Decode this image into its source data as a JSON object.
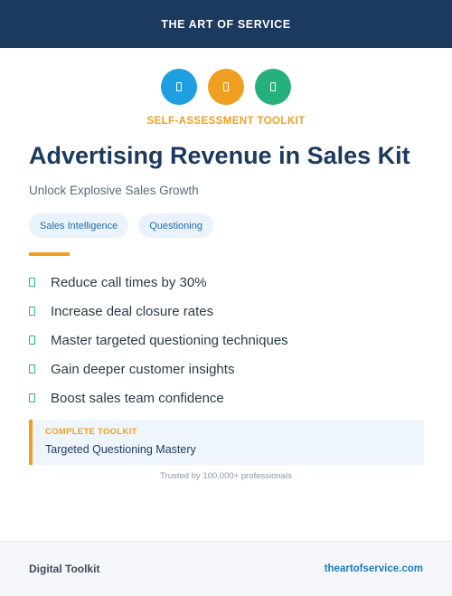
{
  "header": {
    "brand": "THE ART OF SERVICE"
  },
  "icons": [
    {
      "name": "document-icon",
      "color": "#1ea0e0"
    },
    {
      "name": "document-icon",
      "color": "#f0a020"
    },
    {
      "name": "document-icon",
      "color": "#26b07c"
    }
  ],
  "hero": {
    "eyebrow": "SELF-ASSESSMENT TOOLKIT",
    "title": "Advertising Revenue in Sales Kit",
    "subtitle": "Unlock Explosive Sales Growth"
  },
  "tags": [
    "Sales Intelligence",
    "Questioning"
  ],
  "benefits": [
    "Reduce call times by 30%",
    "Increase deal closure rates",
    "Master targeted questioning techniques",
    "Gain deeper customer insights",
    "Boost sales team confidence"
  ],
  "callout": {
    "label": "COMPLETE TOOLKIT",
    "value": "Targeted Questioning Mastery"
  },
  "trust_text": "Trusted by 100,000+ professionals",
  "footer": {
    "left": "Digital Toolkit",
    "right": "theartofservice.com"
  },
  "colors": {
    "navy": "#1c3a5e",
    "orange": "#f0a020",
    "blue": "#1ea0e0",
    "green": "#26b07c"
  }
}
